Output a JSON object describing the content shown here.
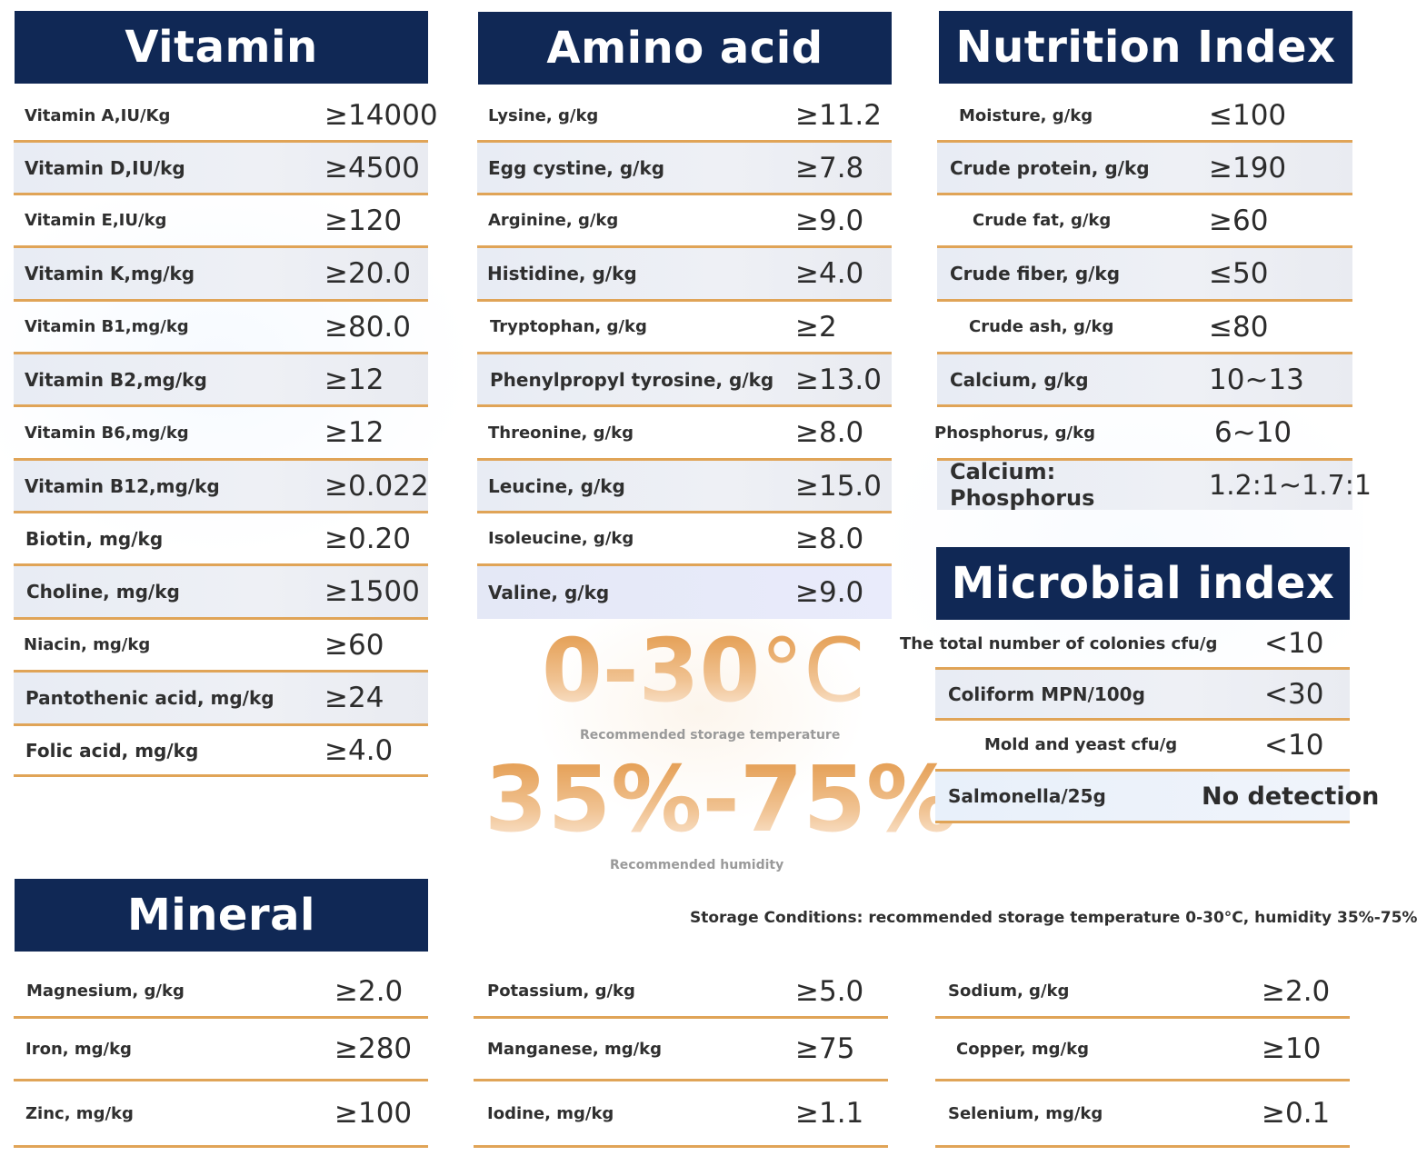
{
  "vitamin": {
    "title": "Vitamin",
    "rows": [
      {
        "label": "Vitamin A,IU/Kg",
        "value": "≥14000"
      },
      {
        "label": "Vitamin D,IU/kg",
        "value": "≥4500"
      },
      {
        "label": "Vitamin E,IU/kg",
        "value": "≥120"
      },
      {
        "label": "Vitamin K,mg/kg",
        "value": "≥20.0"
      },
      {
        "label": "Vitamin B1,mg/kg",
        "value": "≥80.0"
      },
      {
        "label": "Vitamin B2,mg/kg",
        "value": "≥12"
      },
      {
        "label": "Vitamin B6,mg/kg",
        "value": "≥12"
      },
      {
        "label": "Vitamin B12,mg/kg",
        "value": "≥0.022"
      },
      {
        "label": "Biotin, mg/kg",
        "value": "≥0.20"
      },
      {
        "label": "Choline, mg/kg",
        "value": "≥1500"
      },
      {
        "label": "Niacin, mg/kg",
        "value": "≥60"
      },
      {
        "label": "Pantothenic acid, mg/kg",
        "value": "≥24"
      },
      {
        "label": "Folic acid, mg/kg",
        "value": "≥4.0"
      }
    ]
  },
  "amino": {
    "title": "Amino acid",
    "rows": [
      {
        "label": "Lysine, g/kg",
        "value": "≥11.2"
      },
      {
        "label": "Egg cystine, g/kg",
        "value": "≥7.8"
      },
      {
        "label": "Arginine, g/kg",
        "value": "≥9.0"
      },
      {
        "label": "Histidine, g/kg",
        "value": "≥4.0"
      },
      {
        "label": "Tryptophan, g/kg",
        "value": "≥2"
      },
      {
        "label": "Phenylpropyl tyrosine, g/kg",
        "value": "≥13.0"
      },
      {
        "label": "Threonine, g/kg",
        "value": "≥8.0"
      },
      {
        "label": "Leucine, g/kg",
        "value": "≥15.0"
      },
      {
        "label": "Isoleucine, g/kg",
        "value": "≥8.0"
      },
      {
        "label": "Valine, g/kg",
        "value": "≥9.0"
      }
    ]
  },
  "nutrition": {
    "title": "Nutrition Index",
    "rows": [
      {
        "label": "Moisture, g/kg",
        "value": "≤100"
      },
      {
        "label": "Crude protein, g/kg",
        "value": "≥190"
      },
      {
        "label": "Crude fat, g/kg",
        "value": "≥60"
      },
      {
        "label": "Crude fiber, g/kg",
        "value": "≤50"
      },
      {
        "label": "Crude ash, g/kg",
        "value": "≤80"
      },
      {
        "label": "Calcium, g/kg",
        "value": "10~13"
      },
      {
        "label": "Phosphorus, g/kg",
        "value": "6~10"
      },
      {
        "label_line1": "Calcium:",
        "label_line2": "Phosphorus",
        "value": "1.2:1~1.7:1"
      }
    ]
  },
  "microbial": {
    "title": "Microbial index",
    "rows": [
      {
        "label": "The total number of colonies cfu/g",
        "value": "<10"
      },
      {
        "label": "Coliform MPN/100g",
        "value": "<30"
      },
      {
        "label": "Mold and yeast cfu/g",
        "value": "<10"
      },
      {
        "label": "Salmonella/25g",
        "value": "No detection"
      }
    ]
  },
  "storage": {
    "temperature": "0-30",
    "temperature_unit": "°C",
    "temperature_caption": "Recommended storage temperature",
    "humidity": "35%-75%",
    "humidity_caption": "Recommended humidity",
    "conditions": "Storage Conditions: recommended storage temperature 0-30°C, humidity 35%-75%"
  },
  "mineral": {
    "title": "Mineral",
    "col1": [
      {
        "label": "Magnesium, g/kg",
        "value": "≥2.0"
      },
      {
        "label": "Iron, mg/kg",
        "value": "≥280"
      },
      {
        "label": "Zinc, mg/kg",
        "value": "≥100"
      }
    ],
    "col2": [
      {
        "label": "Potassium, g/kg",
        "value": "≥5.0"
      },
      {
        "label": "Manganese, mg/kg",
        "value": "≥75"
      },
      {
        "label": "Iodine, mg/kg",
        "value": "≥1.1"
      }
    ],
    "col3": [
      {
        "label": "Sodium, g/kg",
        "value": "≥2.0"
      },
      {
        "label": "Copper, mg/kg",
        "value": "≥10"
      },
      {
        "label": "Selenium, mg/kg",
        "value": "≥0.1"
      }
    ]
  }
}
